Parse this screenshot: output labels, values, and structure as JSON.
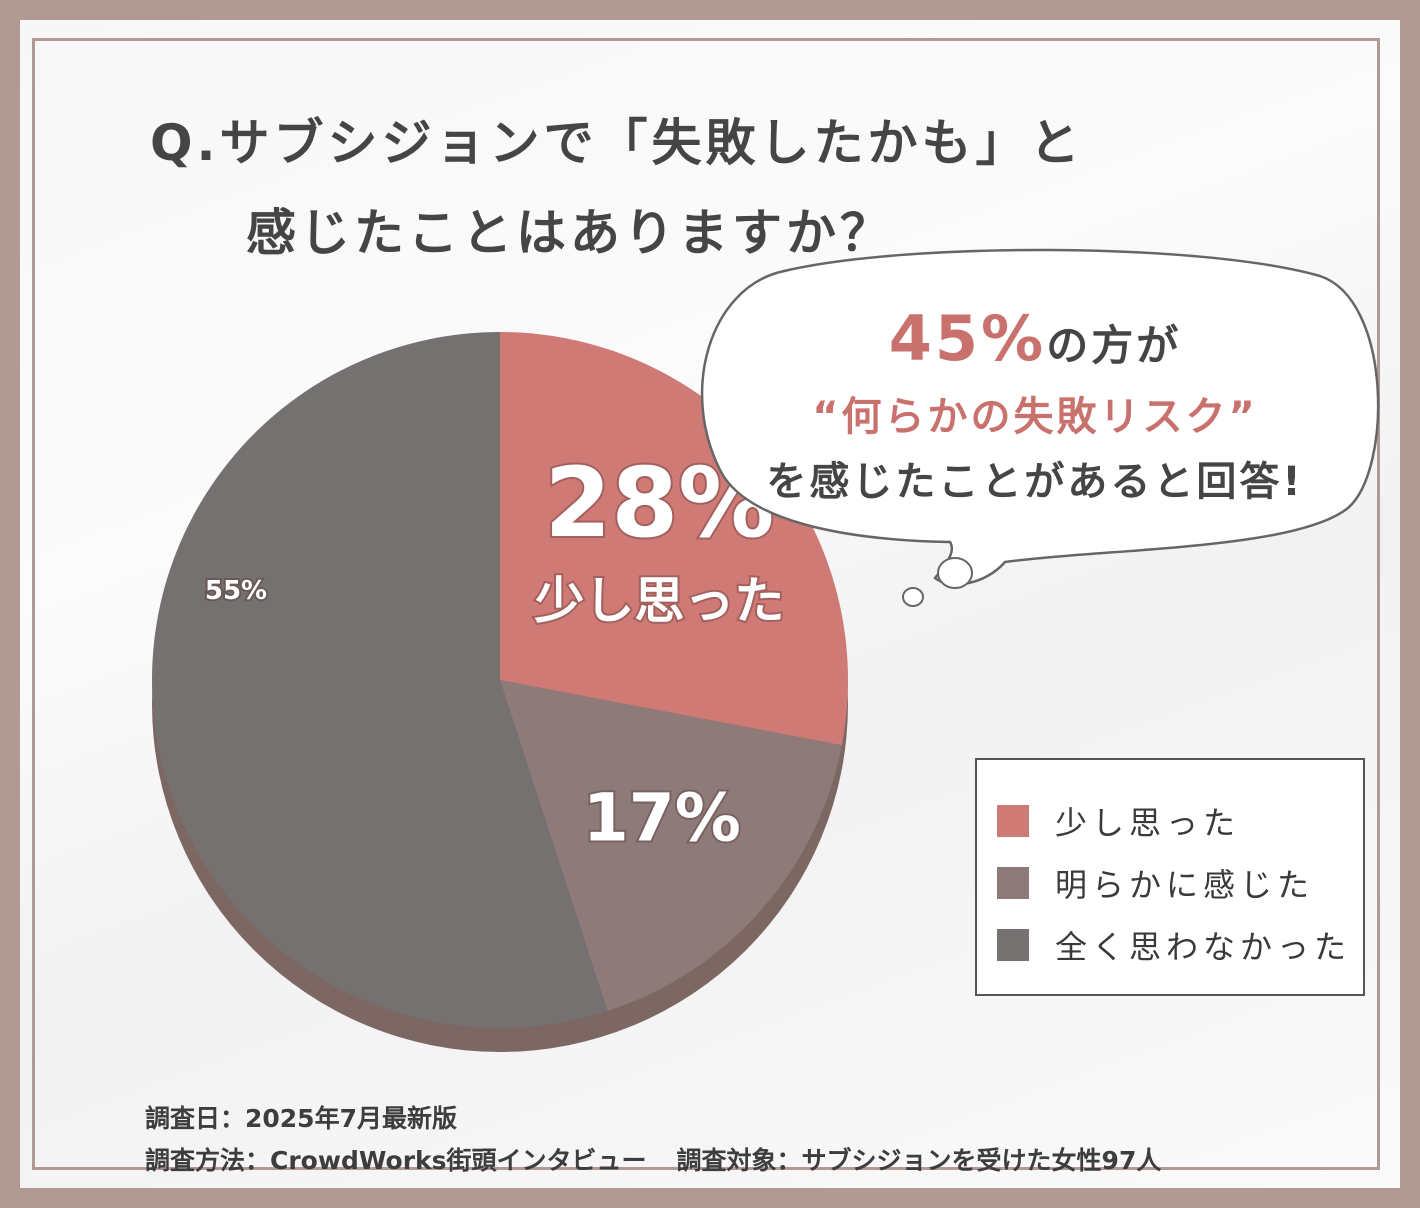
{
  "title": {
    "line1": "Q.サブシジョンで「失敗したかも」と",
    "line2": "感じたことはありますか？"
  },
  "callout": {
    "highlight": "45%",
    "line1_rest": "の方が",
    "line2": "“何らかの失敗リスク”",
    "line3": "を感じたことがあると回答!"
  },
  "chart_data": {
    "type": "pie",
    "title": "",
    "slices": [
      {
        "label": "少し思った",
        "value": 28,
        "display": "28%",
        "color": "#cf7a75"
      },
      {
        "label": "明らかに感じた",
        "value": 17,
        "display": "17%",
        "color": "#8e7b79"
      },
      {
        "label": "全く思わなかった",
        "value": 55,
        "display": "55%",
        "color": "#757170"
      }
    ],
    "inner_label": {
      "slice_index": 0,
      "text": "少し思った"
    },
    "legend_position": "right"
  },
  "footer": {
    "survey_date": "調査日：2025年7月最新版",
    "method": "調査方法：CrowdWorks街頭インタビュー",
    "target": "調査対象：サブシジョンを受けた女性97人"
  }
}
